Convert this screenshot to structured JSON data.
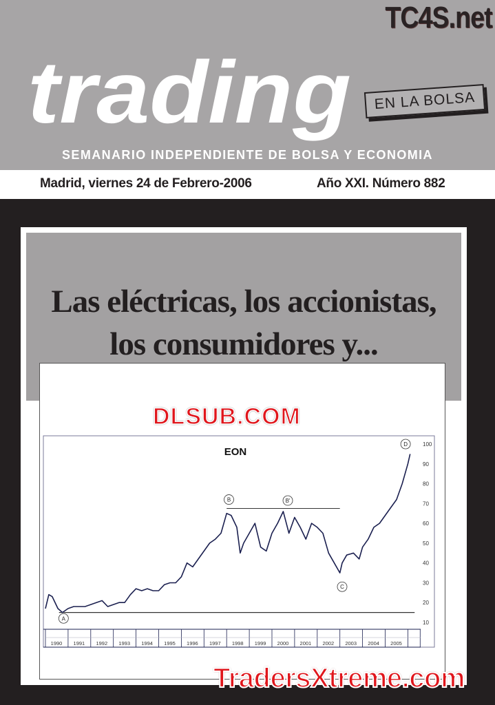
{
  "masthead": {
    "title": "trading",
    "tag": "EN LA BOLSA",
    "subtitle": "SEMANARIO INDEPENDIENTE DE BOLSA Y ECONOMIA",
    "watermark_top": "TC4S.net"
  },
  "dateline": {
    "date": "Madrid, viernes 24 de Febrero-2006",
    "issue": "Año XXI. Número 882"
  },
  "headline": {
    "line1": "Las eléctricas, los accionistas,",
    "line2": "los consumidores y..."
  },
  "watermarks": {
    "middle": "DLSUB.COM",
    "bottom": "TradersXtreme.com"
  },
  "colors": {
    "masthead_gray": "#a7a5a6",
    "background": "#231f20",
    "series": "#1a1f4f",
    "watermark_red": "#e0161c"
  },
  "chart_data": {
    "type": "line",
    "title": "EON",
    "ylim": [
      10,
      100
    ],
    "yticks": [
      "100",
      "90",
      "80",
      "70",
      "60",
      "50",
      "40",
      "30",
      "20",
      "10"
    ],
    "xticks": [
      "1990",
      "1991",
      "1992",
      "1993",
      "1994",
      "1995",
      "1996",
      "1997",
      "1998",
      "1999",
      "2000",
      "2001",
      "2002",
      "2003",
      "2004",
      "2005"
    ],
    "y_axis_position": "right",
    "grid": false,
    "series": [
      {
        "x": [
          1990.0,
          1990.15,
          1990.3,
          1990.55,
          1990.75,
          1991.0,
          1991.25,
          1991.5,
          1991.75,
          1992.0,
          1992.25,
          1992.5,
          1992.75,
          1993.0,
          1993.25,
          1993.5,
          1993.75,
          1994.0,
          1994.25,
          1994.5,
          1994.75,
          1995.0,
          1995.25,
          1995.5,
          1995.75,
          1996.0,
          1996.25,
          1996.5,
          1996.75,
          1997.0,
          1997.25,
          1997.5,
          1997.75,
          1998.0,
          1998.2,
          1998.45,
          1998.6,
          1998.75,
          1999.0,
          1999.25,
          1999.5,
          1999.75,
          2000.0,
          2000.25,
          2000.5,
          2000.75,
          2001.0,
          2001.25,
          2001.5,
          2001.75,
          2002.0,
          2002.25,
          2002.5,
          2002.75,
          2003.0,
          2003.1,
          2003.3,
          2003.6,
          2003.85,
          2004.0,
          2004.25,
          2004.5,
          2004.75,
          2005.0,
          2005.25,
          2005.5,
          2005.75,
          2006.0,
          2006.1
        ],
        "y": [
          17,
          24,
          23,
          17,
          15,
          17,
          18,
          18,
          18,
          19,
          20,
          21,
          18,
          19,
          20,
          20,
          24,
          27,
          26,
          27,
          26,
          26,
          29,
          30,
          30,
          33,
          40,
          38,
          42,
          46,
          50,
          52,
          55,
          65,
          64,
          58,
          45,
          50,
          55,
          60,
          48,
          46,
          55,
          60,
          66,
          55,
          63,
          58,
          52,
          60,
          58,
          55,
          45,
          40,
          35,
          40,
          44,
          45,
          42,
          48,
          52,
          58,
          60,
          64,
          68,
          72,
          80,
          90,
          95
        ]
      }
    ],
    "annotations": [
      {
        "label": "A",
        "x": 1990.8,
        "y": 12
      },
      {
        "label": "B",
        "x": 1998.1,
        "y": 72
      },
      {
        "label": "B'",
        "x": 2000.7,
        "y": 71.5
      },
      {
        "label": "C",
        "x": 2003.1,
        "y": 28
      },
      {
        "label": "D",
        "x": 2005.9,
        "y": 100
      }
    ],
    "reference_lines": [
      {
        "y": 67.5,
        "x_from": 1998.0,
        "x_to": 2003.0
      },
      {
        "y": 15,
        "x_from": 1990.6,
        "x_to": 2006.3
      }
    ]
  }
}
